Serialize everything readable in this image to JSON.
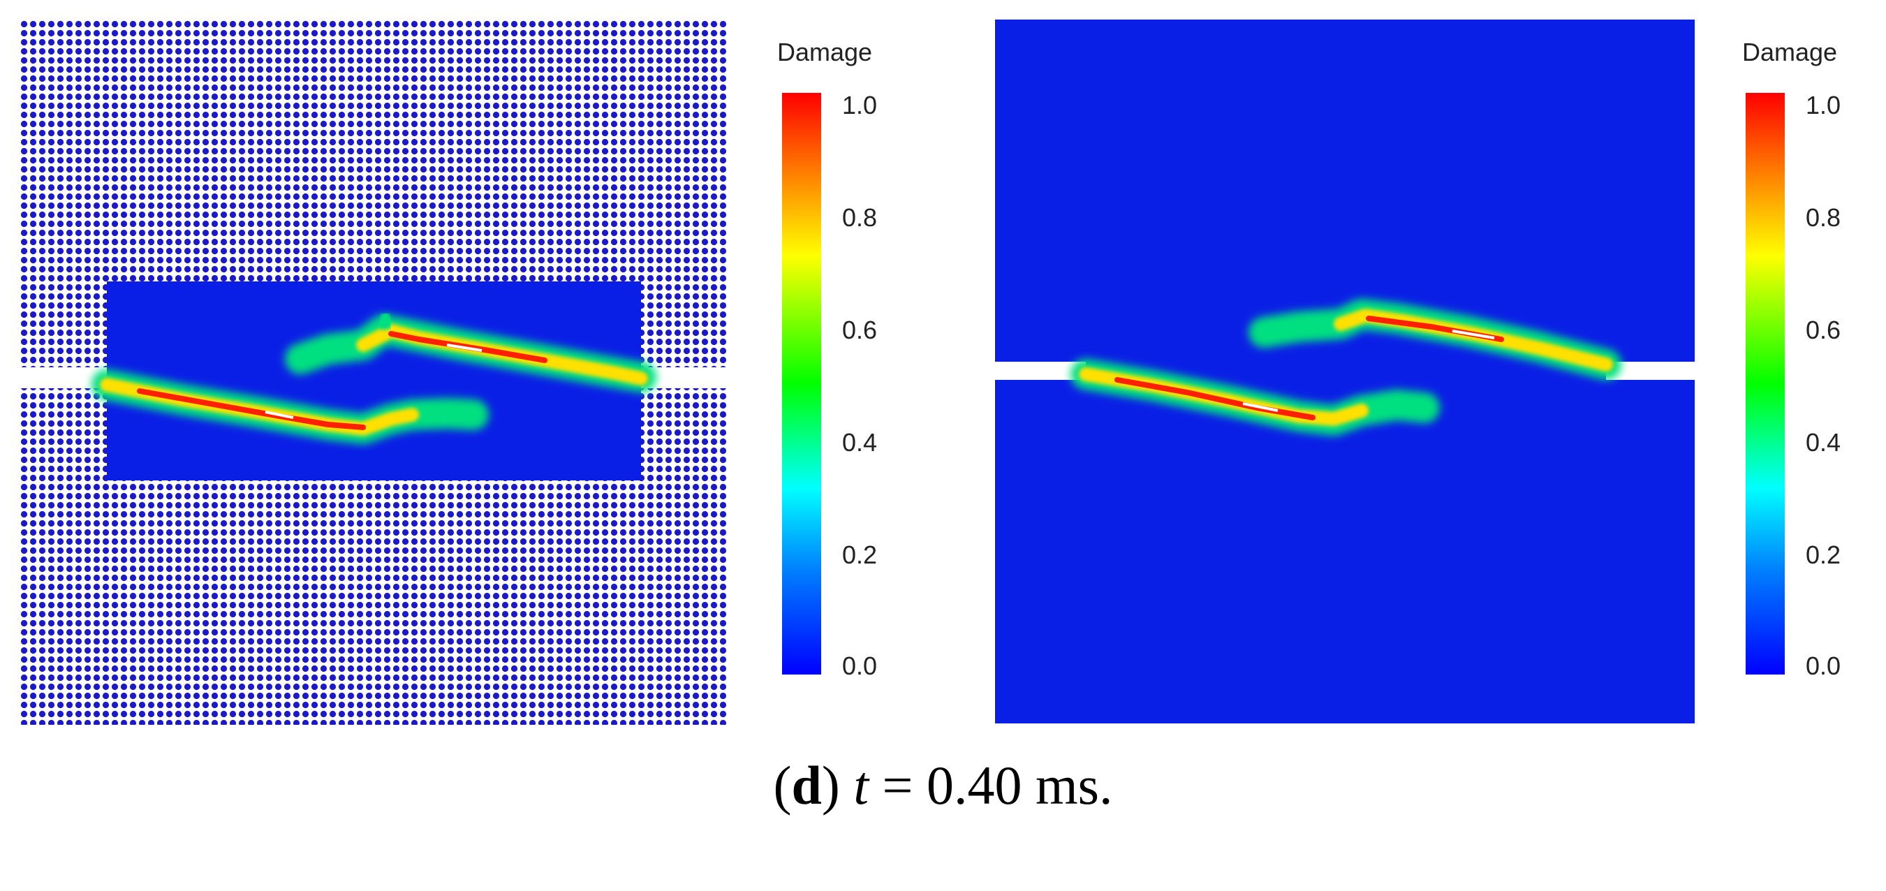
{
  "colors": {
    "background": "#ffffff",
    "particle": "#1a1acc",
    "field": "#0a1fe6",
    "notch": "#ffffff",
    "colormap": [
      "#0000ff",
      "#00aaff",
      "#00ffff",
      "#00ff00",
      "#ffff00",
      "#ff8000",
      "#ff0000"
    ]
  },
  "panels": [
    {
      "name": "left",
      "colorbar": {
        "title": "Damage",
        "ticks": [
          "1.0",
          "0.8",
          "0.6",
          "0.4",
          "0.2",
          "0.0"
        ],
        "range": [
          0,
          1
        ]
      }
    },
    {
      "name": "right",
      "colorbar": {
        "title": "Damage",
        "ticks": [
          "1.0",
          "0.8",
          "0.6",
          "0.4",
          "0.2",
          "0.0"
        ],
        "range": [
          0,
          1
        ]
      }
    }
  ],
  "caption": {
    "label": "d",
    "open_paren": "(",
    "close_paren": ")",
    "variable": "t",
    "rest": " = 0.40 ms."
  }
}
